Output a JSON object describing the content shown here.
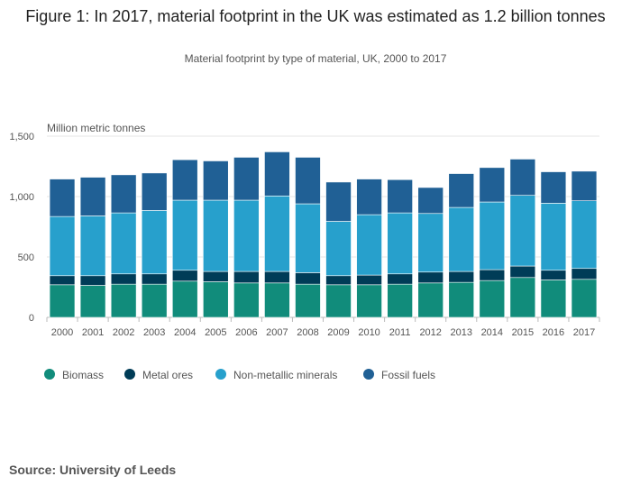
{
  "title": "Figure 1: In 2017, material footprint in the UK was estimated as 1.2 billion tonnes",
  "subtitle": "Material footprint by type of material, UK, 2000 to 2017",
  "source": "Source: University of Leeds",
  "chart_data": {
    "type": "bar",
    "stacked": true,
    "title": "Figure 1: In 2017, material footprint in the UK was estimated as 1.2 billion tonnes",
    "subtitle": "Material footprint by type of material, UK, 2000 to 2017",
    "xlabel": "",
    "ylabel": "Million metric tonnes",
    "ylim": [
      0,
      1500
    ],
    "yticks": [
      0,
      500,
      1000,
      1500
    ],
    "ytick_labels": [
      "0",
      "500",
      "1,000",
      "1,500"
    ],
    "grid": true,
    "legend_position": "bottom-left",
    "categories": [
      "2000",
      "2001",
      "2002",
      "2003",
      "2004",
      "2005",
      "2006",
      "2007",
      "2008",
      "2009",
      "2010",
      "2011",
      "2012",
      "2013",
      "2014",
      "2015",
      "2016",
      "2017"
    ],
    "series": [
      {
        "name": "Biomass",
        "color": "#118c7b",
        "values": [
          270,
          265,
          275,
          275,
          300,
          295,
          285,
          285,
          275,
          270,
          270,
          275,
          285,
          290,
          305,
          330,
          310,
          315
        ]
      },
      {
        "name": "Metal ores",
        "color": "#003c57",
        "values": [
          75,
          80,
          85,
          85,
          90,
          85,
          95,
          95,
          95,
          75,
          80,
          85,
          90,
          90,
          90,
          95,
          80,
          90
        ]
      },
      {
        "name": "Non-metallic minerals",
        "color": "#27a0cc",
        "values": [
          490,
          495,
          505,
          525,
          580,
          590,
          590,
          625,
          570,
          450,
          500,
          505,
          485,
          530,
          560,
          585,
          555,
          560
        ]
      },
      {
        "name": "Fossil fuels",
        "color": "#206095",
        "values": [
          310,
          320,
          315,
          310,
          335,
          325,
          355,
          365,
          385,
          325,
          295,
          275,
          215,
          280,
          285,
          300,
          260,
          245
        ]
      }
    ]
  }
}
